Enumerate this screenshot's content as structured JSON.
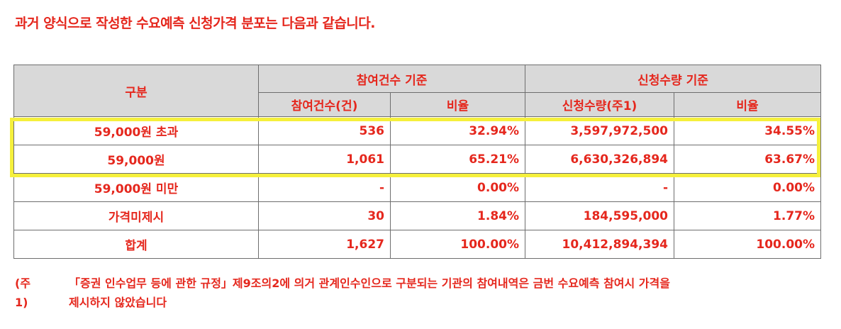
{
  "heading": "과거 양식으로 작성한 수요예측 신청가격 분포는 다음과 같습니다.",
  "table": {
    "header": {
      "category": "구분",
      "group_participants": "참여건수 기준",
      "group_quantity": "신청수량 기준",
      "participants_count": "참여건수(건)",
      "participants_ratio": "비율",
      "quantity": "신청수량(주1)",
      "quantity_ratio": "비율"
    },
    "rows": [
      {
        "label": "59,000원 초과",
        "count": "536",
        "count_ratio": "32.94%",
        "quantity": "3,597,972,500",
        "quantity_ratio": "34.55%"
      },
      {
        "label": "59,000원",
        "count": "1,061",
        "count_ratio": "65.21%",
        "quantity": "6,630,326,894",
        "quantity_ratio": "63.67%"
      },
      {
        "label": "59,000원 미만",
        "count": "-",
        "count_ratio": "0.00%",
        "quantity": "-",
        "quantity_ratio": "0.00%"
      },
      {
        "label": "가격미제시",
        "count": "30",
        "count_ratio": "1.84%",
        "quantity": "184,595,000",
        "quantity_ratio": "1.77%"
      },
      {
        "label": "합계",
        "count": "1,627",
        "count_ratio": "100.00%",
        "quantity": "10,412,894,394",
        "quantity_ratio": "100.00%"
      }
    ]
  },
  "note": {
    "tag": "(주1)",
    "line1": "「증권 인수업무 등에 관한 규정」제9조의2에 의거 관계인수인으로 구분되는 기관의 참여내역은 금번 수요예측 참여시 가격을",
    "line2": "제시하지 않았습니다"
  },
  "colors": {
    "text": "#e5271d",
    "header_bg": "#d9d9d9",
    "border": "#6e6e6e",
    "highlight": "#f5f03c"
  }
}
